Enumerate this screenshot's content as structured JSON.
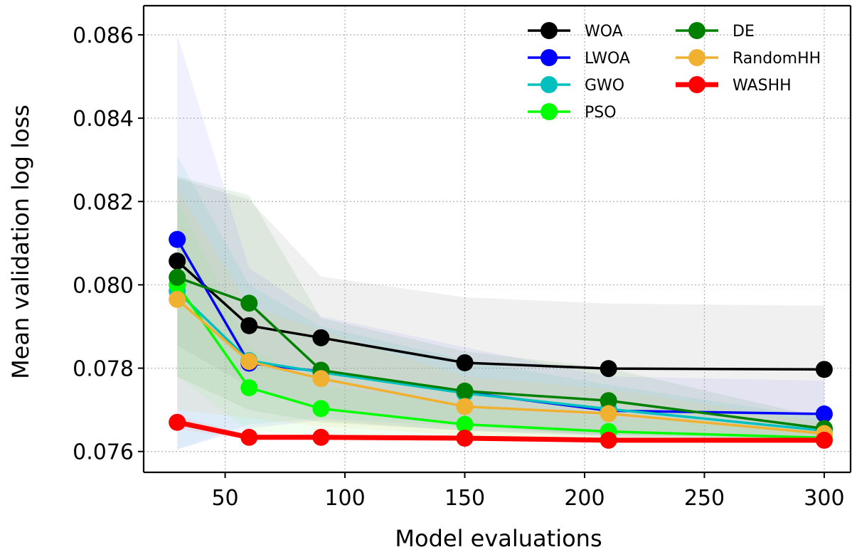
{
  "chart_data": {
    "type": "line",
    "title": "",
    "xlabel": "Model evaluations",
    "ylabel": "Mean validation log loss",
    "xlim": [
      16,
      311
    ],
    "ylim": [
      0.0755,
      0.0867
    ],
    "xticks": [
      50,
      100,
      150,
      200,
      250,
      300
    ],
    "xtick_labels": [
      "50",
      "100",
      "150",
      "200",
      "250",
      "300"
    ],
    "yticks": [
      0.076,
      0.078,
      0.08,
      0.082,
      0.084,
      0.086
    ],
    "ytick_labels": [
      "0.076",
      "0.078",
      "0.080",
      "0.082",
      "0.084",
      "0.086"
    ],
    "grid": true,
    "legend_placement": "top-right",
    "x": [
      30,
      60,
      90,
      150,
      210,
      300
    ],
    "series": [
      {
        "name": "WOA",
        "color": "#000000",
        "values": [
          0.08057,
          0.07902,
          0.07873,
          0.07813,
          0.07799,
          0.07797
        ],
        "band_lower": [
          0.07855,
          0.07755,
          0.07705,
          0.07665,
          0.07635,
          0.0763
        ],
        "band_upper": [
          0.08255,
          0.08205,
          0.0802,
          0.0797,
          0.07955,
          0.0795
        ],
        "band_color": "#888888"
      },
      {
        "name": "LWOA",
        "color": "#0000ff",
        "values": [
          0.08109,
          0.07812,
          0.07792,
          0.07742,
          0.07698,
          0.0769
        ],
        "band_lower": [
          0.07605,
          0.07655,
          0.07675,
          0.0765,
          0.07635,
          0.0763
        ],
        "band_upper": [
          0.086,
          0.0804,
          0.07925,
          0.0785,
          0.0778,
          0.0777
        ],
        "band_color": "#8888ff"
      },
      {
        "name": "GWO",
        "color": "#00bfbf",
        "values": [
          0.07985,
          0.07818,
          0.0779,
          0.0774,
          0.07702,
          0.0765
        ],
        "band_lower": [
          0.07605,
          0.07665,
          0.0768,
          0.0766,
          0.0764,
          0.0763
        ],
        "band_upper": [
          0.0831,
          0.08,
          0.079,
          0.0782,
          0.0776,
          0.0768
        ],
        "band_color": "#66cccc"
      },
      {
        "name": "PSO",
        "color": "#00ff00",
        "values": [
          0.08,
          0.07753,
          0.07703,
          0.07665,
          0.07648,
          0.07633
        ],
        "band_lower": [
          0.0778,
          0.0765,
          0.0764,
          0.0763,
          0.07625,
          0.07622
        ],
        "band_upper": [
          0.082,
          0.0785,
          0.0776,
          0.0771,
          0.0768,
          0.0766
        ],
        "band_color": "#88ff88"
      },
      {
        "name": "DE",
        "color": "#008000",
        "values": [
          0.08018,
          0.07956,
          0.07795,
          0.07745,
          0.07722,
          0.07655
        ],
        "band_lower": [
          0.0778,
          0.077,
          0.0767,
          0.0765,
          0.0764,
          0.0763
        ],
        "band_upper": [
          0.0826,
          0.08215,
          0.0792,
          0.0784,
          0.078,
          0.0768
        ],
        "band_color": "#66aa66"
      },
      {
        "name": "RandomHH",
        "color": "#f0b030",
        "values": [
          0.07965,
          0.07816,
          0.07775,
          0.07708,
          0.07691,
          0.07643
        ],
        "band_lower": [
          0.077,
          0.0768,
          0.0766,
          0.0764,
          0.0763,
          0.0762
        ],
        "band_upper": [
          0.0823,
          0.0795,
          0.0789,
          0.0778,
          0.0775,
          0.0767
        ],
        "band_color": "#f0c870"
      },
      {
        "name": "WASHH",
        "color": "#ff0000",
        "values": [
          0.0767,
          0.07634,
          0.07634,
          0.07632,
          0.07627,
          0.07627
        ],
        "band_lower": [
          0.07655,
          0.07628,
          0.07628,
          0.07626,
          0.07622,
          0.07622
        ],
        "band_upper": [
          0.07685,
          0.0764,
          0.0764,
          0.07638,
          0.07632,
          0.07632
        ],
        "band_color": "#ff8888"
      }
    ]
  }
}
